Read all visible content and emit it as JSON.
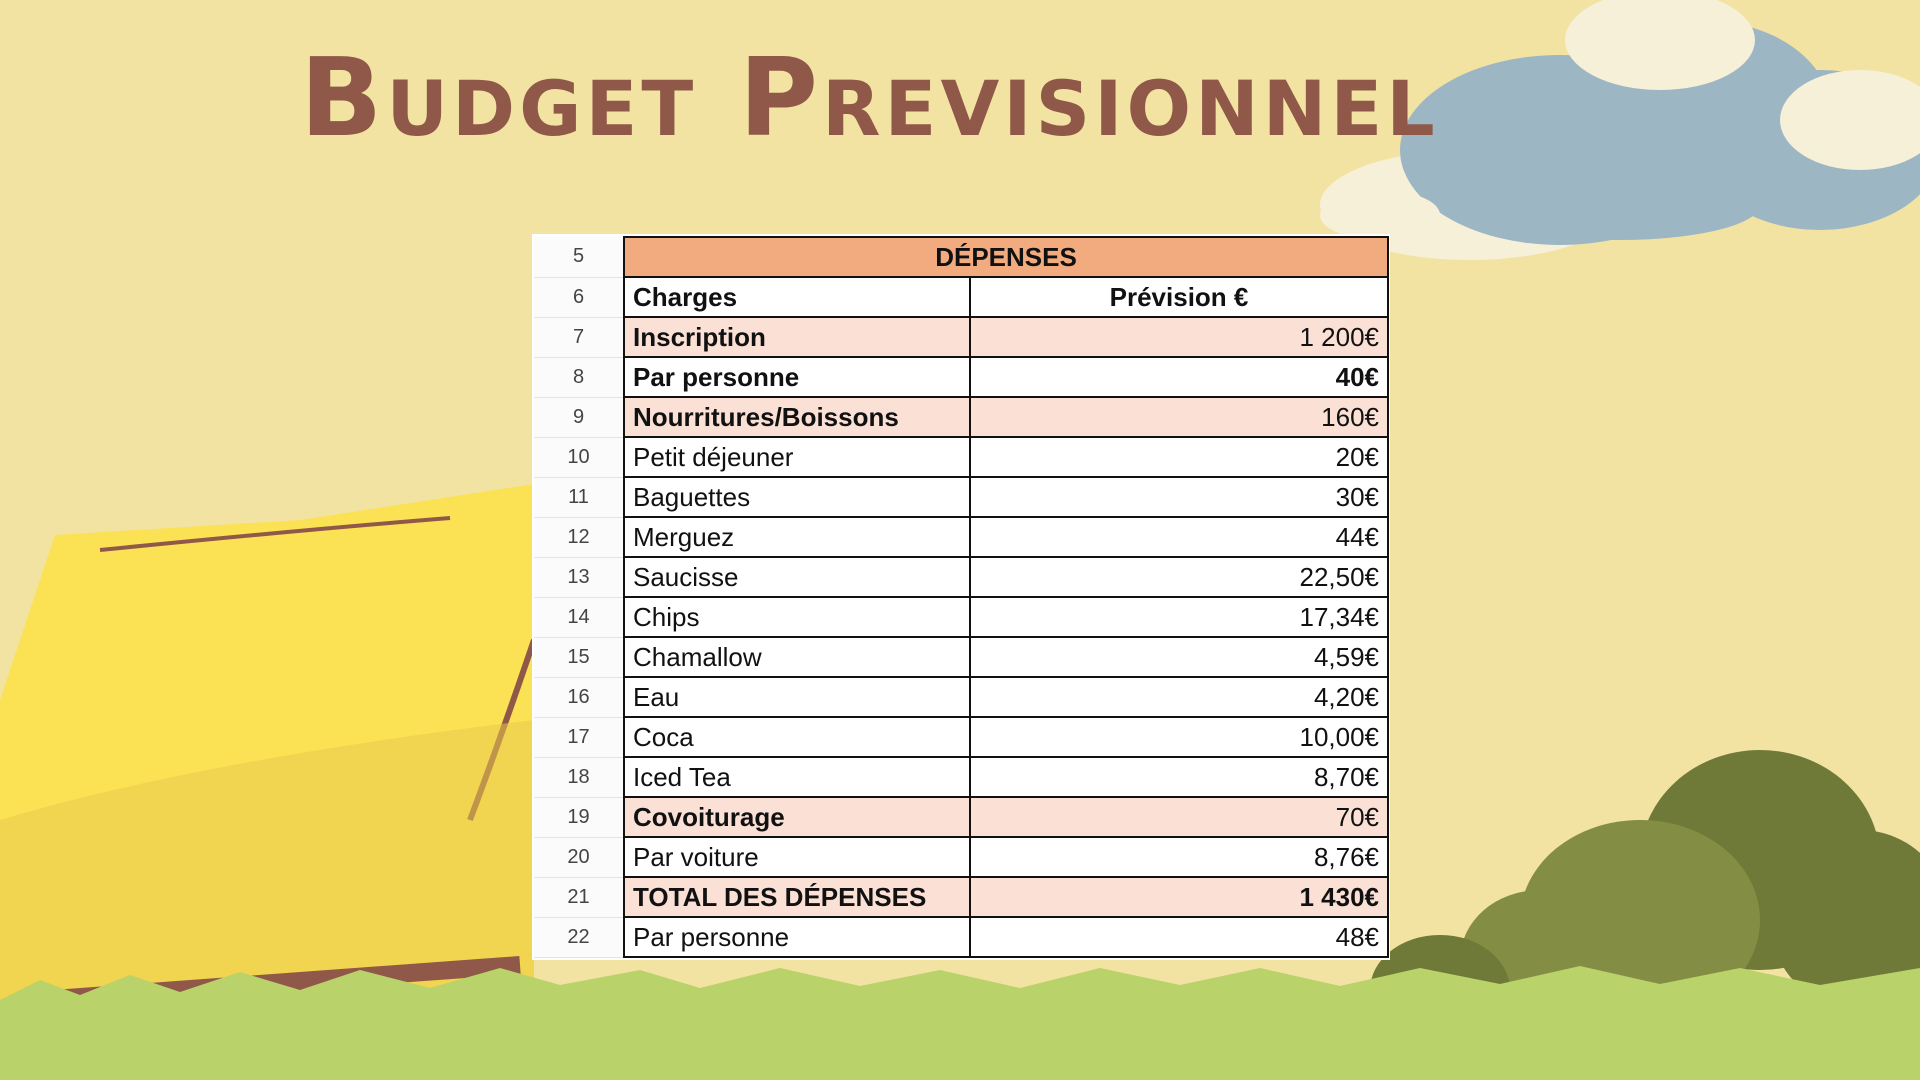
{
  "title": "Budget Previsionnel",
  "colors": {
    "background": "#f2e3a3",
    "title": "#8f5849",
    "header_fill": "#f2ab7f",
    "highlight_fill": "#fbe0d6",
    "tent": "#fbe254",
    "grass": "#b9d26a",
    "bush": "#6f7a39",
    "cloud": "#9db6c4"
  },
  "table": {
    "header": {
      "row": "5",
      "label": "DÉPENSES"
    },
    "columns": {
      "row": "6",
      "charges": "Charges",
      "prevision": "Prévision €"
    },
    "rows": [
      {
        "row": "7",
        "label": "Inscription",
        "amount": "1 200€",
        "bold_label": true,
        "bold_amount": false,
        "tinted": true
      },
      {
        "row": "8",
        "label": "Par personne",
        "amount": "40€",
        "bold_label": true,
        "bold_amount": true,
        "tinted": false
      },
      {
        "row": "9",
        "label": "Nourritures/Boissons",
        "amount": "160€",
        "bold_label": true,
        "bold_amount": false,
        "tinted": true
      },
      {
        "row": "10",
        "label": "Petit déjeuner",
        "amount": "20€",
        "bold_label": false,
        "bold_amount": false,
        "tinted": false
      },
      {
        "row": "11",
        "label": "Baguettes",
        "amount": "30€",
        "bold_label": false,
        "bold_amount": false,
        "tinted": false
      },
      {
        "row": "12",
        "label": "Merguez",
        "amount": "44€",
        "bold_label": false,
        "bold_amount": false,
        "tinted": false
      },
      {
        "row": "13",
        "label": "Saucisse",
        "amount": "22,50€",
        "bold_label": false,
        "bold_amount": false,
        "tinted": false
      },
      {
        "row": "14",
        "label": "Chips",
        "amount": "17,34€",
        "bold_label": false,
        "bold_amount": false,
        "tinted": false
      },
      {
        "row": "15",
        "label": "Chamallow",
        "amount": "4,59€",
        "bold_label": false,
        "bold_amount": false,
        "tinted": false
      },
      {
        "row": "16",
        "label": "Eau",
        "amount": "4,20€",
        "bold_label": false,
        "bold_amount": false,
        "tinted": false
      },
      {
        "row": "17",
        "label": "Coca",
        "amount": "10,00€",
        "bold_label": false,
        "bold_amount": false,
        "tinted": false
      },
      {
        "row": "18",
        "label": "Iced Tea",
        "amount": "8,70€",
        "bold_label": false,
        "bold_amount": false,
        "tinted": false
      },
      {
        "row": "19",
        "label": "Covoiturage",
        "amount": "70€",
        "bold_label": true,
        "bold_amount": false,
        "tinted": true
      },
      {
        "row": "20",
        "label": "Par voiture",
        "amount": "8,76€",
        "bold_label": false,
        "bold_amount": false,
        "tinted": false
      },
      {
        "row": "21",
        "label": "TOTAL DES DÉPENSES",
        "amount": "1 430€",
        "bold_label": true,
        "bold_amount": true,
        "tinted": true
      },
      {
        "row": "22",
        "label": "Par personne",
        "amount": "48€",
        "bold_label": false,
        "bold_amount": false,
        "tinted": false
      }
    ]
  }
}
